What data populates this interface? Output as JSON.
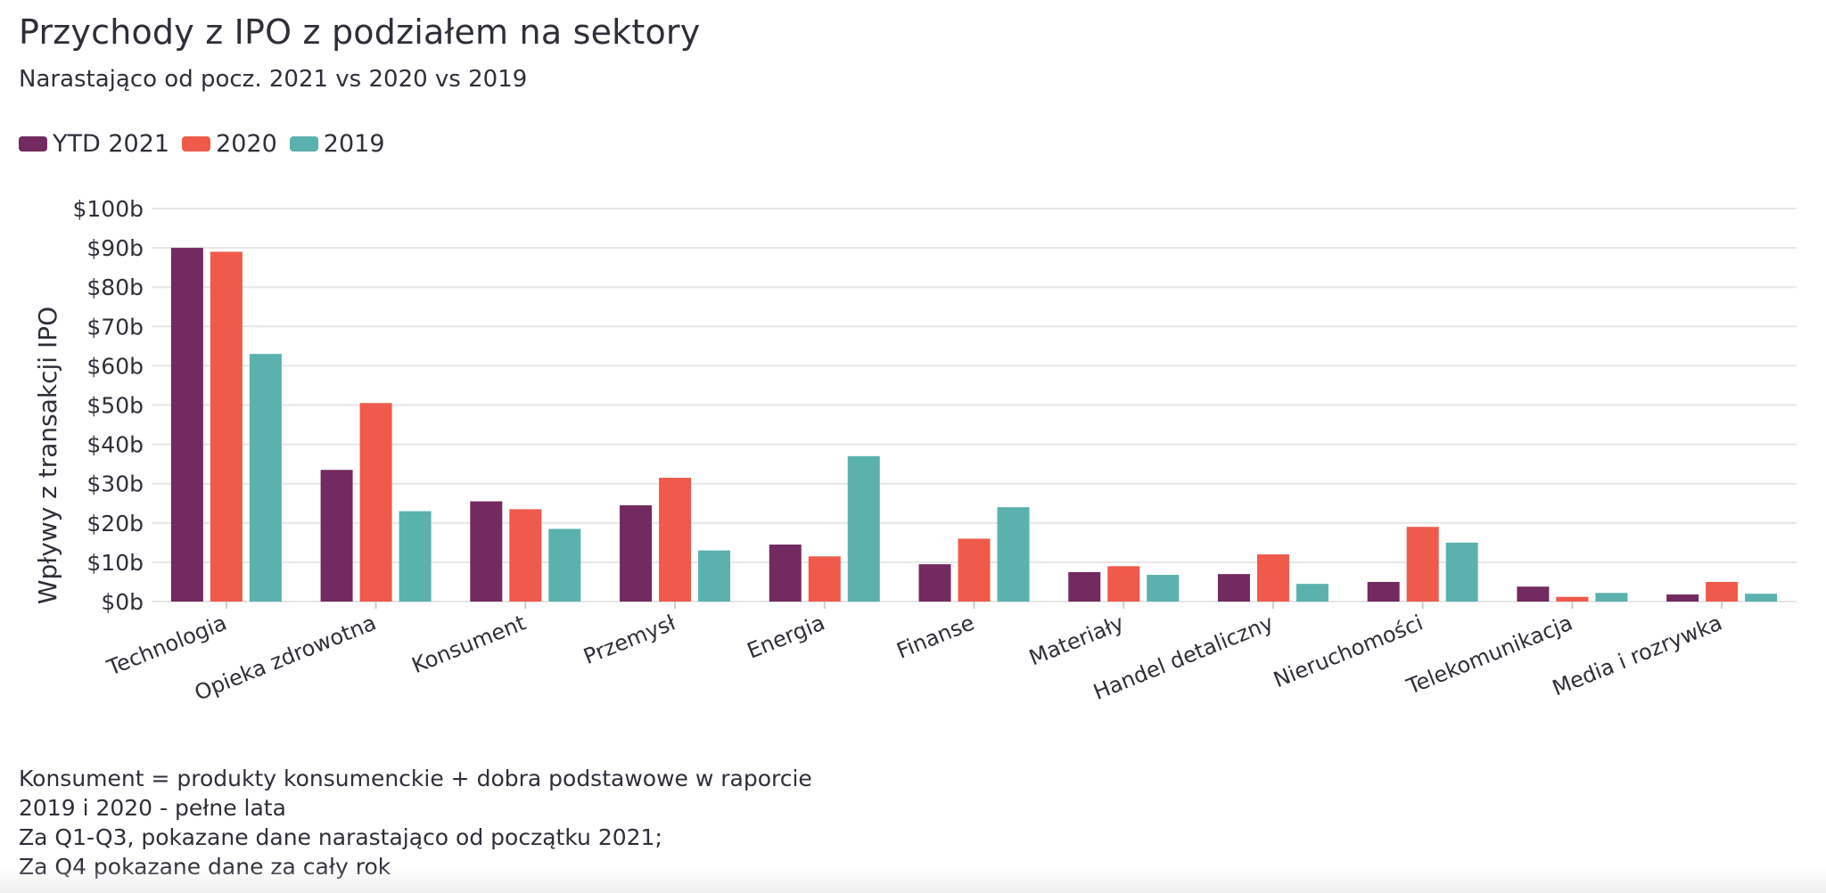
{
  "title": "Przychody z IPO z podziałem na sektory",
  "subtitle": "Narastająco od pocz. 2021 vs 2020 vs 2019",
  "notes": [
    "Konsument = produkty konsumenckie + dobra podstawowe w raporcie",
    "2019 i 2020 - pełne lata",
    "Za Q1-Q3, pokazane dane narastająco od początku 2021;",
    "Za Q4 pokazane dane za cały rok"
  ],
  "colors": {
    "ytd2021": "#722a60",
    "y2020": "#ef5a4b",
    "y2019": "#5bb1ae",
    "grid": "#e6e6e6",
    "text": "#2f2f3a"
  },
  "chart_data": {
    "type": "bar",
    "title": "Przychody z IPO z podziałem na sektory",
    "subtitle": "Narastająco od pocz. 2021 vs 2020 vs 2019",
    "xlabel": "",
    "ylabel": "Wpływy z transakcji IPO",
    "ylim": [
      0,
      100
    ],
    "yticks": [
      0,
      10,
      20,
      30,
      40,
      50,
      60,
      70,
      80,
      90,
      100
    ],
    "ytick_labels": [
      "$0b",
      "$10b",
      "$20b",
      "$30b",
      "$40b",
      "$50b",
      "$60b",
      "$70b",
      "$80b",
      "$90b",
      "$100b"
    ],
    "grid": true,
    "legend_position": "top-left",
    "categories": [
      "Technologia",
      "Opieka zdrowotna",
      "Konsument",
      "Przemysł",
      "Energia",
      "Finanse",
      "Materiały",
      "Handel detaliczny",
      "Nieruchomości",
      "Telekomunikacja",
      "Media i rozrywka"
    ],
    "series": [
      {
        "name": "YTD 2021",
        "color": "#722a60",
        "values": [
          90,
          33.5,
          25.5,
          24.5,
          14.5,
          9.5,
          7.5,
          7,
          5,
          3.8,
          1.8
        ]
      },
      {
        "name": "2020",
        "color": "#ef5a4b",
        "values": [
          89,
          50.5,
          23.5,
          31.5,
          11.5,
          16,
          9,
          12,
          19,
          1.2,
          5
        ]
      },
      {
        "name": "2019",
        "color": "#5bb1ae",
        "values": [
          63,
          23,
          18.5,
          13,
          37,
          24,
          6.8,
          4.5,
          15,
          2.2,
          2
        ]
      }
    ]
  }
}
